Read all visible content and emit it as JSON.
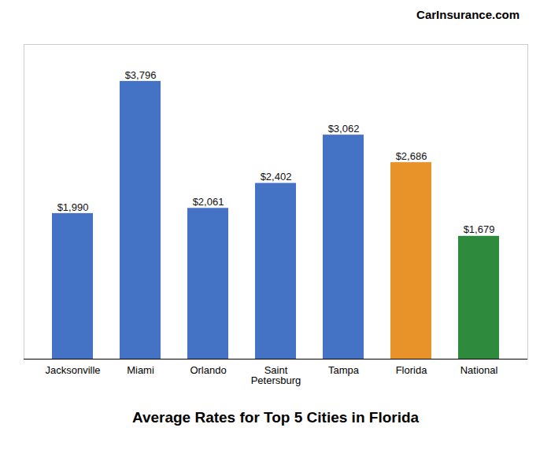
{
  "chart_data": {
    "type": "bar",
    "title": "Average Rates for Top 5 Cities in Florida",
    "annotations": [
      "CarInsurance.com"
    ],
    "categories": [
      "Jacksonville",
      "Miami",
      "Orlando",
      "Saint\nPetersburg",
      "Tampa",
      "Florida",
      "National"
    ],
    "values": [
      1990,
      3796,
      2061,
      2402,
      3062,
      2686,
      1679
    ],
    "value_labels": [
      "$1,990",
      "$3,796",
      "$2,061",
      "$2,402",
      "$3,062",
      "$2,686",
      "$1,679"
    ],
    "colors": [
      "#4472C4",
      "#4472C4",
      "#4472C4",
      "#4472C4",
      "#4472C4",
      "#E8922A",
      "#2E8B3E"
    ],
    "ylim": [
      0,
      4300
    ],
    "data_labels": true,
    "grid": false,
    "tick_labels": "x"
  }
}
